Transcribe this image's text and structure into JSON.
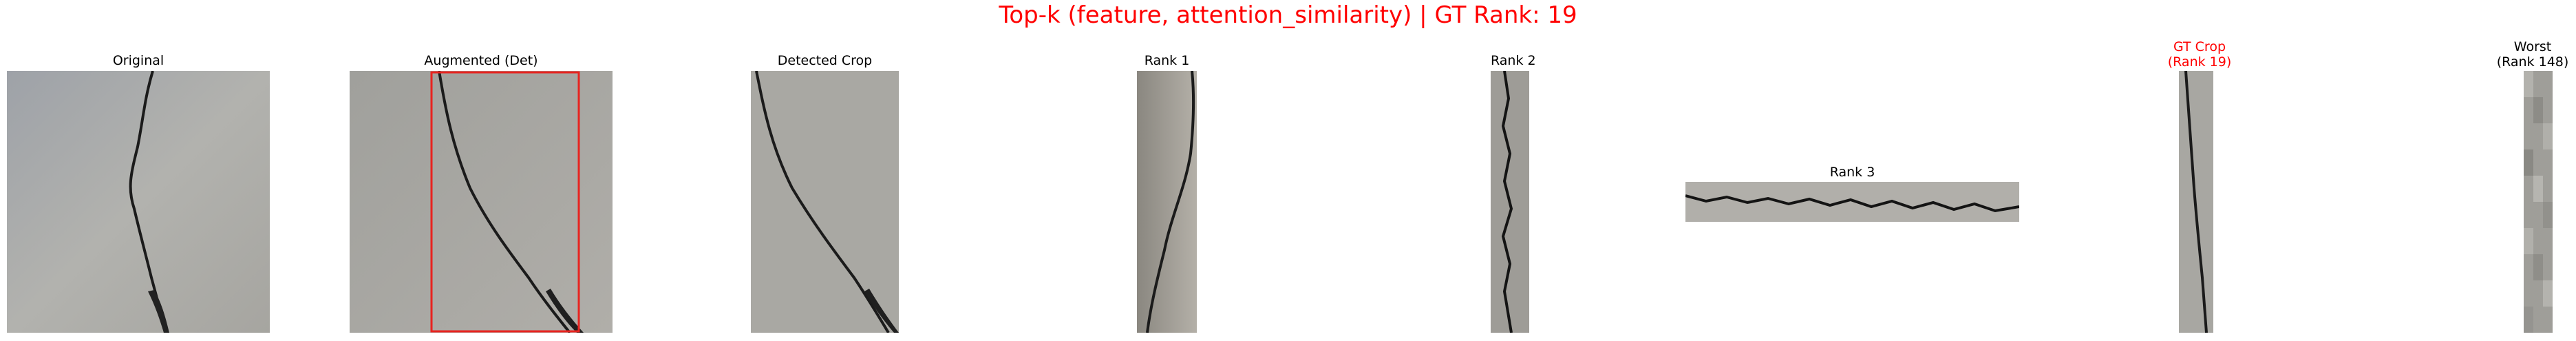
{
  "title": "Top-k (feature, attention_similarity) | GT Rank: 19",
  "panels": [
    {
      "caption": "Original"
    },
    {
      "caption": "Augmented (Det)"
    },
    {
      "caption": "Detected Crop"
    },
    {
      "caption": "Rank 1"
    },
    {
      "caption": "Rank 2"
    },
    {
      "caption": "Rank 3"
    },
    {
      "caption_line1": "GT Crop",
      "caption_line2": "(Rank 19)",
      "color": "#ff0000"
    },
    {
      "caption_line1": "Worst",
      "caption_line2": "(Rank 148)"
    }
  ],
  "colors": {
    "title": "#ff0000",
    "gt_caption": "#ff0000",
    "detection_box": "#e8231f",
    "concrete": "#a9a9a5",
    "crack": "#1a1a1a"
  }
}
